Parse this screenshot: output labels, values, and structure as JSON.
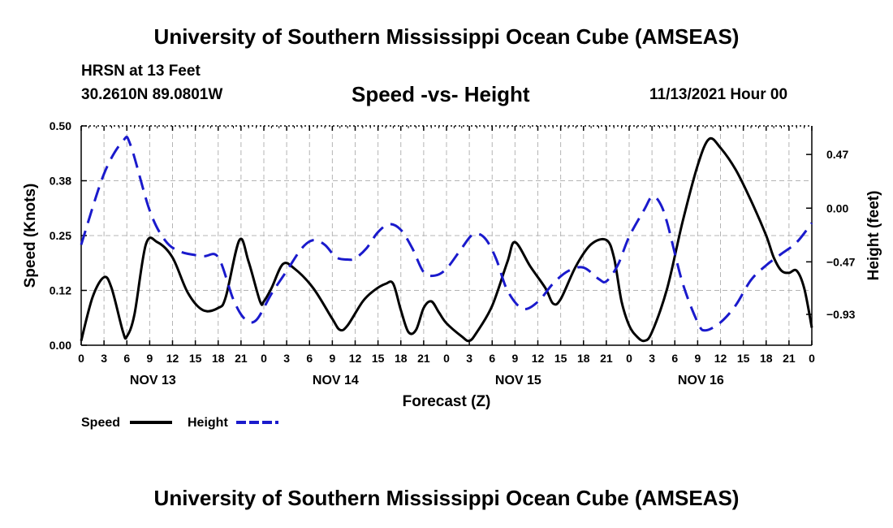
{
  "header": {
    "title": "University of Southern Mississippi Ocean Cube (AMSEAS)",
    "station_name": "HRSN at 13 Feet",
    "coordinates": "30.2610N  89.0801W",
    "subtitle": "Speed -vs- Height",
    "datetime": "11/13/2021 Hour 00"
  },
  "footer": {
    "title": "University of Southern Mississippi Ocean Cube (AMSEAS)"
  },
  "chart_data": {
    "type": "line",
    "title": "Speed -vs- Height",
    "xlabel": "Forecast (Z)",
    "ylabel": "Speed (Knots)",
    "y2label": "Height (feet)",
    "x": [
      0,
      3,
      6,
      9,
      12,
      15,
      18,
      21,
      24,
      27,
      30,
      33,
      36,
      39,
      42,
      45,
      48,
      51,
      54,
      57,
      60,
      63,
      66,
      69,
      72,
      75,
      78,
      81,
      84,
      87,
      90,
      93,
      96
    ],
    "xlim": [
      0,
      96
    ],
    "x_tick_labels": [
      "0",
      "3",
      "6",
      "9",
      "12",
      "15",
      "18",
      "21",
      "0",
      "3",
      "6",
      "9",
      "12",
      "15",
      "18",
      "21",
      "0",
      "3",
      "6",
      "9",
      "12",
      "15",
      "18",
      "21",
      "0",
      "3",
      "6",
      "9",
      "12",
      "15",
      "18",
      "21",
      "0"
    ],
    "day_labels": [
      {
        "label": "NOV 13",
        "hour": 9
      },
      {
        "label": "NOV 14",
        "hour": 33
      },
      {
        "label": "NOV 15",
        "hour": 57
      },
      {
        "label": "NOV 16",
        "hour": 81
      }
    ],
    "ylim": [
      0,
      0.5
    ],
    "y_ticks": [
      0,
      0.125,
      0.25,
      0.375,
      0.5
    ],
    "y_tick_labels": [
      "0.00",
      "0.12",
      "0.25",
      "0.38",
      "0.50"
    ],
    "y2lim": [
      -1.2,
      0.72
    ],
    "y2_ticks": [
      -0.93,
      -0.47,
      0.0,
      0.47
    ],
    "y2_tick_labels": [
      "−0.93",
      "−0.47",
      "0.00",
      "0.47"
    ],
    "grid": true,
    "legend": "bottom-left",
    "series": [
      {
        "name": "Speed",
        "axis": "left",
        "color": "#000000",
        "style": "solid",
        "points": [
          [
            0,
            0.01
          ],
          [
            1.5,
            0.11
          ],
          [
            3,
            0.155
          ],
          [
            4,
            0.13
          ],
          [
            5.5,
            0.03
          ],
          [
            6,
            0.02
          ],
          [
            7,
            0.07
          ],
          [
            8.5,
            0.23
          ],
          [
            10,
            0.235
          ],
          [
            12,
            0.2
          ],
          [
            14,
            0.12
          ],
          [
            16,
            0.08
          ],
          [
            18,
            0.085
          ],
          [
            19,
            0.11
          ],
          [
            20.8,
            0.24
          ],
          [
            22,
            0.19
          ],
          [
            23.5,
            0.1
          ],
          [
            24,
            0.1
          ],
          [
            25,
            0.13
          ],
          [
            26.5,
            0.185
          ],
          [
            28,
            0.175
          ],
          [
            30.5,
            0.13
          ],
          [
            33,
            0.06
          ],
          [
            34,
            0.035
          ],
          [
            35,
            0.045
          ],
          [
            37,
            0.1
          ],
          [
            38.5,
            0.125
          ],
          [
            40,
            0.14
          ],
          [
            41,
            0.14
          ],
          [
            42,
            0.08
          ],
          [
            43,
            0.03
          ],
          [
            44,
            0.035
          ],
          [
            45,
            0.085
          ],
          [
            46,
            0.1
          ],
          [
            47,
            0.075
          ],
          [
            48,
            0.05
          ],
          [
            50,
            0.02
          ],
          [
            51,
            0.01
          ],
          [
            52,
            0.03
          ],
          [
            54,
            0.09
          ],
          [
            56,
            0.19
          ],
          [
            57,
            0.235
          ],
          [
            59,
            0.18
          ],
          [
            61,
            0.13
          ],
          [
            62,
            0.095
          ],
          [
            63,
            0.105
          ],
          [
            65,
            0.18
          ],
          [
            67,
            0.23
          ],
          [
            69,
            0.24
          ],
          [
            70,
            0.2
          ],
          [
            71,
            0.1
          ],
          [
            72,
            0.045
          ],
          [
            73,
            0.02
          ],
          [
            74,
            0.01
          ],
          [
            75,
            0.03
          ],
          [
            77,
            0.13
          ],
          [
            79,
            0.28
          ],
          [
            81,
            0.41
          ],
          [
            82.5,
            0.47
          ],
          [
            84,
            0.45
          ],
          [
            86,
            0.4
          ],
          [
            88,
            0.33
          ],
          [
            90,
            0.25
          ],
          [
            91,
            0.2
          ],
          [
            92,
            0.17
          ],
          [
            93,
            0.165
          ],
          [
            94,
            0.17
          ],
          [
            95,
            0.13
          ],
          [
            96,
            0.04
          ]
        ]
      },
      {
        "name": "Height",
        "axis": "right",
        "color": "#1a1acc",
        "style": "dashed",
        "points": [
          [
            0,
            -0.32
          ],
          [
            3,
            0.3
          ],
          [
            5.5,
            0.59
          ],
          [
            6.5,
            0.55
          ],
          [
            9,
            -0.02
          ],
          [
            11,
            -0.28
          ],
          [
            13,
            -0.38
          ],
          [
            16,
            -0.42
          ],
          [
            18,
            -0.43
          ],
          [
            20,
            -0.8
          ],
          [
            21.5,
            -0.97
          ],
          [
            23,
            -0.98
          ],
          [
            25,
            -0.75
          ],
          [
            27,
            -0.55
          ],
          [
            29,
            -0.35
          ],
          [
            30.5,
            -0.28
          ],
          [
            32,
            -0.32
          ],
          [
            33.5,
            -0.43
          ],
          [
            35,
            -0.45
          ],
          [
            36,
            -0.44
          ],
          [
            37.5,
            -0.35
          ],
          [
            39,
            -0.21
          ],
          [
            40.5,
            -0.14
          ],
          [
            42,
            -0.19
          ],
          [
            43.5,
            -0.35
          ],
          [
            45,
            -0.56
          ],
          [
            46.5,
            -0.59
          ],
          [
            48,
            -0.53
          ],
          [
            50,
            -0.35
          ],
          [
            51.5,
            -0.23
          ],
          [
            53,
            -0.26
          ],
          [
            54.5,
            -0.44
          ],
          [
            56,
            -0.72
          ],
          [
            58,
            -0.88
          ],
          [
            60,
            -0.82
          ],
          [
            62,
            -0.66
          ],
          [
            64,
            -0.55
          ],
          [
            66,
            -0.52
          ],
          [
            68,
            -0.62
          ],
          [
            69,
            -0.64
          ],
          [
            70.5,
            -0.5
          ],
          [
            72,
            -0.25
          ],
          [
            74,
            -0.01
          ],
          [
            75,
            0.1
          ],
          [
            76,
            0.05
          ],
          [
            77,
            -0.13
          ],
          [
            79,
            -0.65
          ],
          [
            81,
            -1.0
          ],
          [
            82,
            -1.07
          ],
          [
            84,
            -1.0
          ],
          [
            86,
            -0.85
          ],
          [
            88,
            -0.63
          ],
          [
            90,
            -0.5
          ],
          [
            92,
            -0.4
          ],
          [
            94,
            -0.3
          ],
          [
            96,
            -0.13
          ]
        ]
      }
    ]
  },
  "legend": {
    "items": [
      {
        "label": "Speed",
        "color": "#000000",
        "style": "solid"
      },
      {
        "label": "Height",
        "color": "#1a1acc",
        "style": "dashed"
      }
    ]
  }
}
